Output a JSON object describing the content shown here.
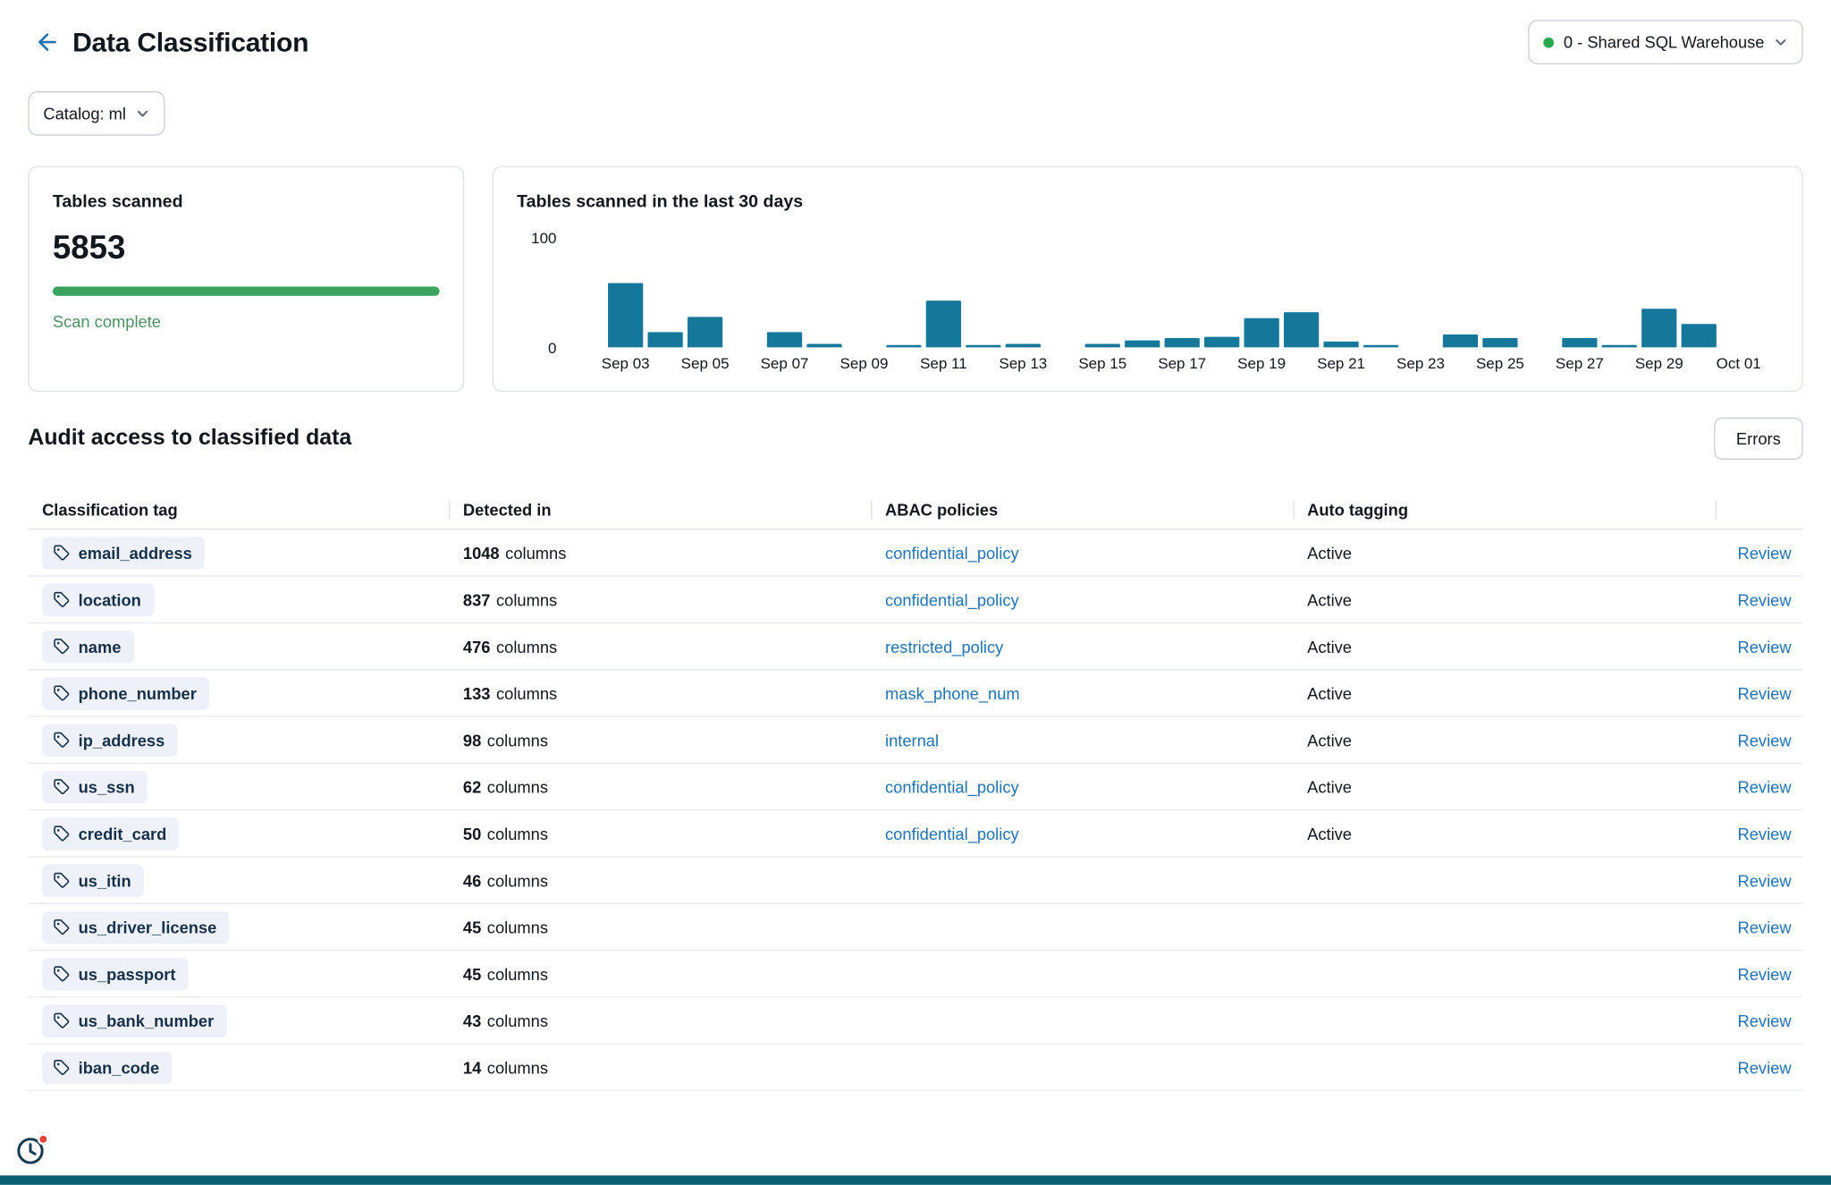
{
  "colors": {
    "accent_blue": "#2272B4",
    "chart_bar": "#15789A",
    "success_green": "#3BA45C",
    "success_text": "#4E8F63",
    "chip_bg": "#EEF2F8",
    "warehouse_dot": "#2AA84F",
    "notification_red": "#E8443C",
    "bottom_strip": "#0B5D72"
  },
  "header": {
    "title": "Data Classification",
    "back_icon": "arrow-left-icon",
    "warehouse_selector": {
      "label": "0 - Shared SQL Warehouse"
    },
    "catalog_filter": {
      "label": "Catalog: ml"
    }
  },
  "summary_card": {
    "title": "Tables scanned",
    "count": "5853",
    "progress_percent": 100,
    "status": "Scan complete"
  },
  "chart_data": {
    "type": "bar",
    "title": "Tables scanned in the last 30 days",
    "x": [
      "Sep 03",
      "Sep 04",
      "Sep 05",
      "Sep 06",
      "Sep 07",
      "Sep 08",
      "Sep 09",
      "Sep 10",
      "Sep 11",
      "Sep 12",
      "Sep 13",
      "Sep 14",
      "Sep 15",
      "Sep 16",
      "Sep 17",
      "Sep 18",
      "Sep 19",
      "Sep 20",
      "Sep 21",
      "Sep 22",
      "Sep 23",
      "Sep 24",
      "Sep 25",
      "Sep 26",
      "Sep 27",
      "Sep 28",
      "Sep 29",
      "Sep 30",
      "Oct 01"
    ],
    "values": [
      58,
      14,
      28,
      0,
      14,
      3,
      0,
      2,
      43,
      2,
      3,
      0,
      3,
      6,
      8,
      10,
      27,
      32,
      5,
      2,
      0,
      12,
      8,
      0,
      8,
      2,
      35,
      21,
      0
    ],
    "xtick_labels": [
      "Sep 03",
      "Sep 05",
      "Sep 07",
      "Sep 09",
      "Sep 11",
      "Sep 13",
      "Sep 15",
      "Sep 17",
      "Sep 19",
      "Sep 21",
      "Sep 23",
      "Sep 25",
      "Sep 27",
      "Sep 29",
      "Oct 01"
    ],
    "ytick_labels": [
      "100",
      "0"
    ],
    "ylim": [
      0,
      100
    ],
    "bar_color": "#15789A",
    "grid": "off",
    "legend": "none"
  },
  "audit": {
    "title": "Audit access to classified data",
    "errors_button": "Errors",
    "table": {
      "headers": [
        "Classification tag",
        "Detected in",
        "ABAC policies",
        "Auto tagging",
        ""
      ],
      "rows": [
        {
          "tag": "email_address",
          "count": "1048",
          "unit": "columns",
          "policy": "confidential_policy",
          "auto_tagging": "Active",
          "action": "Review"
        },
        {
          "tag": "location",
          "count": "837",
          "unit": "columns",
          "policy": "confidential_policy",
          "auto_tagging": "Active",
          "action": "Review"
        },
        {
          "tag": "name",
          "count": "476",
          "unit": "columns",
          "policy": "restricted_policy",
          "auto_tagging": "Active",
          "action": "Review"
        },
        {
          "tag": "phone_number",
          "count": "133",
          "unit": "columns",
          "policy": "mask_phone_num",
          "auto_tagging": "Active",
          "action": "Review"
        },
        {
          "tag": "ip_address",
          "count": "98",
          "unit": "columns",
          "policy": "internal",
          "auto_tagging": "Active",
          "action": "Review"
        },
        {
          "tag": "us_ssn",
          "count": "62",
          "unit": "columns",
          "policy": "confidential_policy",
          "auto_tagging": "Active",
          "action": "Review"
        },
        {
          "tag": "credit_card",
          "count": "50",
          "unit": "columns",
          "policy": "confidential_policy",
          "auto_tagging": "Active",
          "action": "Review"
        },
        {
          "tag": "us_itin",
          "count": "46",
          "unit": "columns",
          "policy": "",
          "auto_tagging": "",
          "action": "Review"
        },
        {
          "tag": "us_driver_license",
          "count": "45",
          "unit": "columns",
          "policy": "",
          "auto_tagging": "",
          "action": "Review"
        },
        {
          "tag": "us_passport",
          "count": "45",
          "unit": "columns",
          "policy": "",
          "auto_tagging": "",
          "action": "Review"
        },
        {
          "tag": "us_bank_number",
          "count": "43",
          "unit": "columns",
          "policy": "",
          "auto_tagging": "",
          "action": "Review"
        },
        {
          "tag": "iban_code",
          "count": "14",
          "unit": "columns",
          "policy": "",
          "auto_tagging": "",
          "action": "Review"
        }
      ]
    }
  },
  "footer": {
    "history_icon": "clock-icon",
    "has_notification": true
  }
}
